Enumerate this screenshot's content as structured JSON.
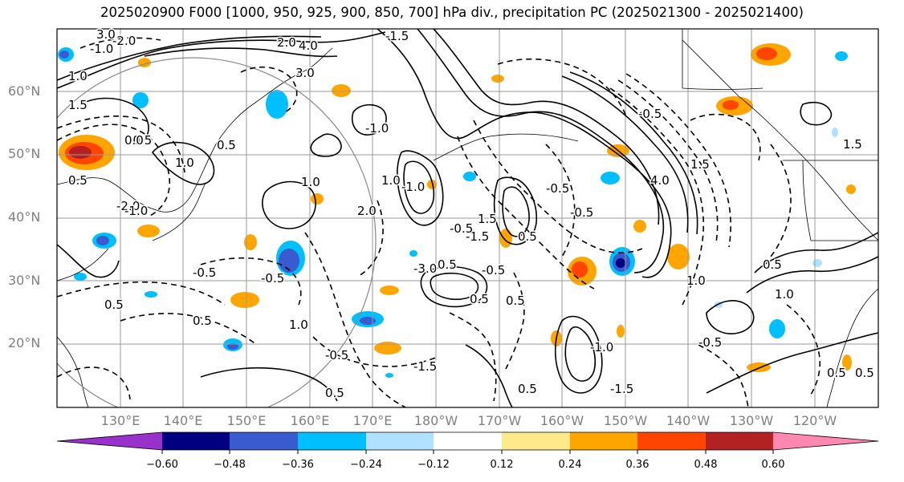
{
  "title": "2025020900 F000 [1000, 950, 925, 900, 850, 700] hPa div., precipitation PC (2025021300 - 2025021400)",
  "lat_labels": [
    "60°N",
    "50°N",
    "40°N",
    "30°N",
    "20°N"
  ],
  "lon_labels": [
    "130°E",
    "140°E",
    "150°E",
    "160°E",
    "170°E",
    "180°W",
    "170°W",
    "160°W",
    "150°W",
    "140°W",
    "130°W",
    "120°W"
  ],
  "colorbar": {
    "ticks": [
      "−0.60",
      "−0.48",
      "−0.36",
      "−0.24",
      "−0.12",
      "0.12",
      "0.24",
      "0.36",
      "0.48",
      "0.60"
    ],
    "colors": [
      "#9932cc",
      "#000080",
      "#3a5bd0",
      "#00bfff",
      "#b0e2ff",
      "#ffffff",
      "#ffe98a",
      "#ffa500",
      "#ff4500",
      "#b22222",
      "#ff88b0"
    ]
  },
  "contour_labels": [
    "3.0",
    "-2.0",
    "-1.0",
    "2.0",
    "4.0",
    "1.0",
    "3.0",
    "-0.5",
    "-1.5",
    "1.5",
    "0.5",
    "0.0",
    "-2.0",
    "-1.0",
    "1.0",
    "0.5",
    "-3.0",
    "-0.5",
    "-0.5",
    "0.5",
    "0.5",
    "-0.5",
    "-1.5",
    "1.0",
    "0.5",
    "-1.5",
    "0.5",
    "2.0",
    "-0.5",
    "1.0",
    "1.0",
    "-1.0",
    "1.5",
    "-0.5",
    "0.5",
    "0.5",
    "0.5",
    "-1.0",
    "0.5",
    "4.0",
    "-0.5",
    "1.5",
    "-1.5",
    "-1.0",
    "-0.5",
    "1.0",
    "0.5",
    "1.5",
    "-0.5",
    "-0.5",
    "1.0",
    "0.5",
    "0.5"
  ],
  "contour_labels_note": "",
  "map_features": {
    "domain_lat": [
      10,
      70
    ],
    "domain_lon": [
      120,
      250
    ],
    "grid": true,
    "circle": "great circle outline centered near 140°E"
  }
}
